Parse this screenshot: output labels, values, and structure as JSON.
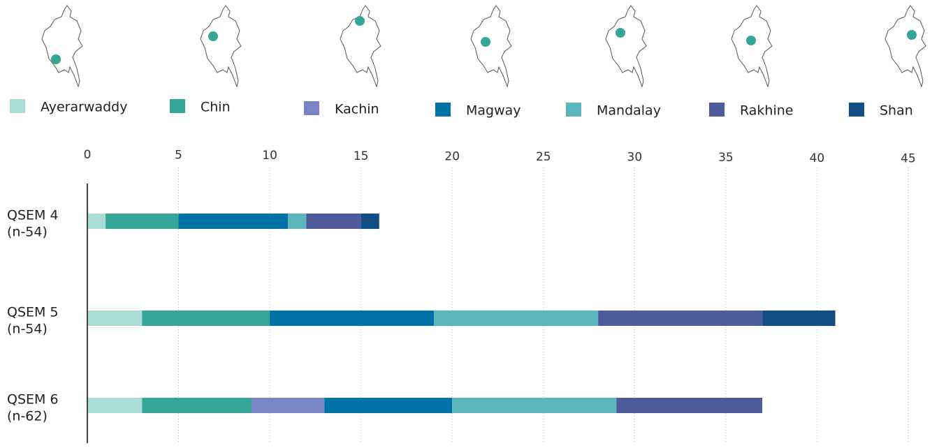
{
  "chart_data": {
    "type": "stacked-bar-horizontal",
    "categories": [
      "QSEM 4",
      "QSEM 5",
      "QSEM 6"
    ],
    "sample_sizes": [
      "(n-54)",
      "(n-54)",
      "(n-62)"
    ],
    "series": [
      {
        "name": "Ayerarwaddy",
        "color": "#a8dcd4",
        "values": [
          1,
          3,
          3
        ]
      },
      {
        "name": "Chin",
        "color": "#34a597",
        "values": [
          4,
          7,
          6
        ]
      },
      {
        "name": "Kachin",
        "color": "#7884c4",
        "values": [
          0,
          0,
          4
        ]
      },
      {
        "name": "Magway",
        "color": "#0073a6",
        "values": [
          6,
          9,
          7
        ]
      },
      {
        "name": "Mandalay",
        "color": "#5bb5bd",
        "values": [
          1,
          9,
          9
        ]
      },
      {
        "name": "Rakhine",
        "color": "#4f5a9a",
        "values": [
          3,
          9,
          8
        ]
      },
      {
        "name": "Shan",
        "color": "#124e84",
        "values": [
          1,
          4,
          0
        ]
      }
    ],
    "xlim": [
      0,
      45
    ],
    "xticks": [
      0,
      5,
      10,
      15,
      20,
      25,
      30,
      35,
      40,
      45
    ],
    "grid": true,
    "legend": "top"
  }
}
